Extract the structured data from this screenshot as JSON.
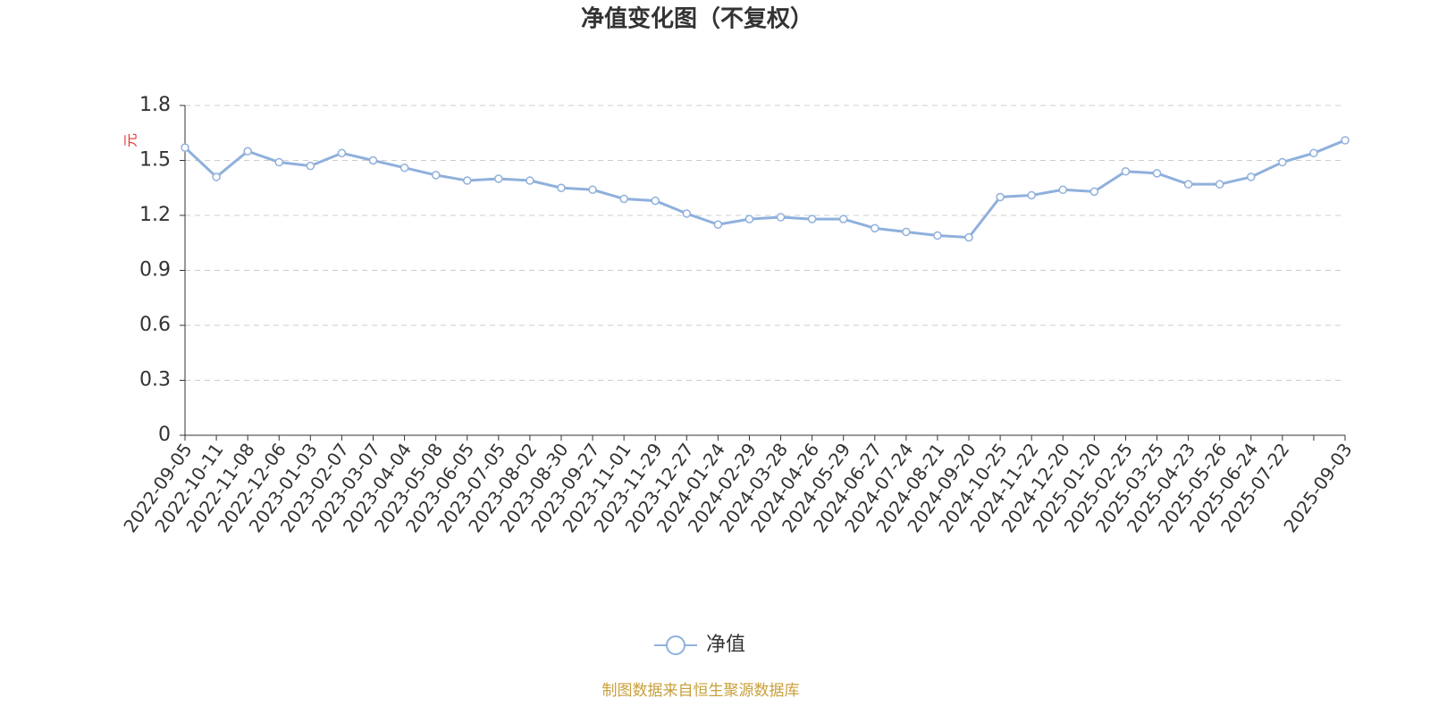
{
  "chart_data": {
    "type": "line",
    "title": "净值变化图（不复权）",
    "y_label": "元",
    "categories": [
      "2022-09-05",
      "2022-10-11",
      "2022-11-08",
      "2022-12-06",
      "2023-01-03",
      "2023-02-07",
      "2023-03-07",
      "2023-04-04",
      "2023-05-08",
      "2023-06-05",
      "2023-07-05",
      "2023-08-02",
      "2023-08-30",
      "2023-09-27",
      "2023-11-01",
      "2023-11-29",
      "2023-12-27",
      "2024-01-24",
      "2024-02-29",
      "2024-03-28",
      "2024-04-26",
      "2024-05-29",
      "2024-06-27",
      "2024-07-24",
      "2024-08-21",
      "2024-09-20",
      "2024-10-25",
      "2024-11-22",
      "2024-12-20",
      "2025-01-20",
      "2025-02-25",
      "2025-03-25",
      "2025-04-23",
      "2025-05-26",
      "2025-06-24",
      "2025-07-22",
      null,
      "2025-09-03"
    ],
    "series": [
      {
        "name": "净值",
        "color": "#8fb0dc",
        "values": [
          1.57,
          1.41,
          1.55,
          1.49,
          1.47,
          1.54,
          1.5,
          1.46,
          1.42,
          1.39,
          1.4,
          1.39,
          1.35,
          1.34,
          1.29,
          1.28,
          1.21,
          1.15,
          1.18,
          1.19,
          1.18,
          1.18,
          1.13,
          1.11,
          1.09,
          1.08,
          1.3,
          1.31,
          1.34,
          1.33,
          1.44,
          1.43,
          1.37,
          1.37,
          1.41,
          1.49,
          1.54,
          1.61
        ]
      }
    ],
    "ylim": [
      0,
      1.8
    ],
    "yticks": [
      0,
      0.3,
      0.6,
      0.9,
      1.2,
      1.5,
      1.8
    ],
    "grid": true,
    "source": "制图数据来自恒生聚源数据库"
  }
}
